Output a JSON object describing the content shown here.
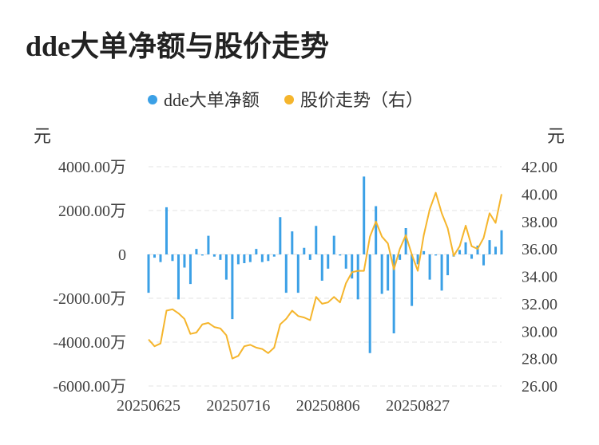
{
  "chart_data": {
    "type": "bar+line",
    "title": "dde大单净额与股价走势",
    "legend": [
      {
        "name": "dde大单净额",
        "color": "#3BA0E6"
      },
      {
        "name": "股价走势（右）",
        "color": "#F5B52C"
      }
    ],
    "legend_position": "top-center",
    "y_left": {
      "unit": "元",
      "ticks": [
        "4000.00万",
        "2000.00万",
        "0",
        "-2000.00万",
        "-4000.00万",
        "-6000.00万"
      ],
      "range": [
        -6000,
        4000
      ]
    },
    "y_right": {
      "unit": "元",
      "ticks": [
        "42.00",
        "40.00",
        "38.00",
        "36.00",
        "34.00",
        "32.00",
        "30.00",
        "28.00",
        "26.00"
      ],
      "range": [
        26,
        42
      ]
    },
    "x_ticks": [
      {
        "label": "20250625",
        "index": 0
      },
      {
        "label": "20250716",
        "index": 15
      },
      {
        "label": "20250806",
        "index": 30
      },
      {
        "label": "20250827",
        "index": 45
      }
    ],
    "grid": "horizontal-dashed",
    "categories_count": 60,
    "dde_values": [
      -1750,
      -150,
      -350,
      2150,
      -300,
      -2050,
      -600,
      -1350,
      250,
      -50,
      850,
      -100,
      -250,
      -1150,
      -2950,
      -450,
      -400,
      -350,
      250,
      -350,
      -300,
      -100,
      1700,
      -1750,
      1050,
      -1750,
      300,
      -250,
      1300,
      -1200,
      -650,
      850,
      -50,
      -650,
      -1100,
      -2050,
      3550,
      -4500,
      2200,
      -1800,
      -1650,
      -3600,
      -250,
      1200,
      -2350,
      -450,
      150,
      -1150,
      -50,
      -1650,
      -950,
      -100,
      200,
      550,
      -200,
      400,
      -500,
      650,
      350,
      1100
    ],
    "price_values": [
      29.4,
      28.9,
      29.1,
      31.5,
      31.6,
      31.3,
      30.9,
      29.8,
      29.9,
      30.5,
      30.6,
      30.3,
      30.2,
      29.7,
      28.0,
      28.2,
      28.9,
      29.0,
      28.8,
      28.7,
      28.4,
      28.8,
      30.5,
      30.9,
      31.5,
      31.1,
      31.0,
      30.8,
      32.5,
      32.0,
      32.1,
      32.5,
      32.1,
      33.5,
      34.3,
      34.4,
      34.4,
      36.9,
      38.0,
      36.9,
      36.4,
      34.5,
      36.0,
      37.0,
      35.6,
      34.4,
      37.0,
      38.9,
      40.1,
      38.6,
      37.5,
      35.5,
      36.2,
      37.7,
      36.2,
      36.0,
      36.8,
      38.6,
      37.9,
      40.0
    ]
  }
}
